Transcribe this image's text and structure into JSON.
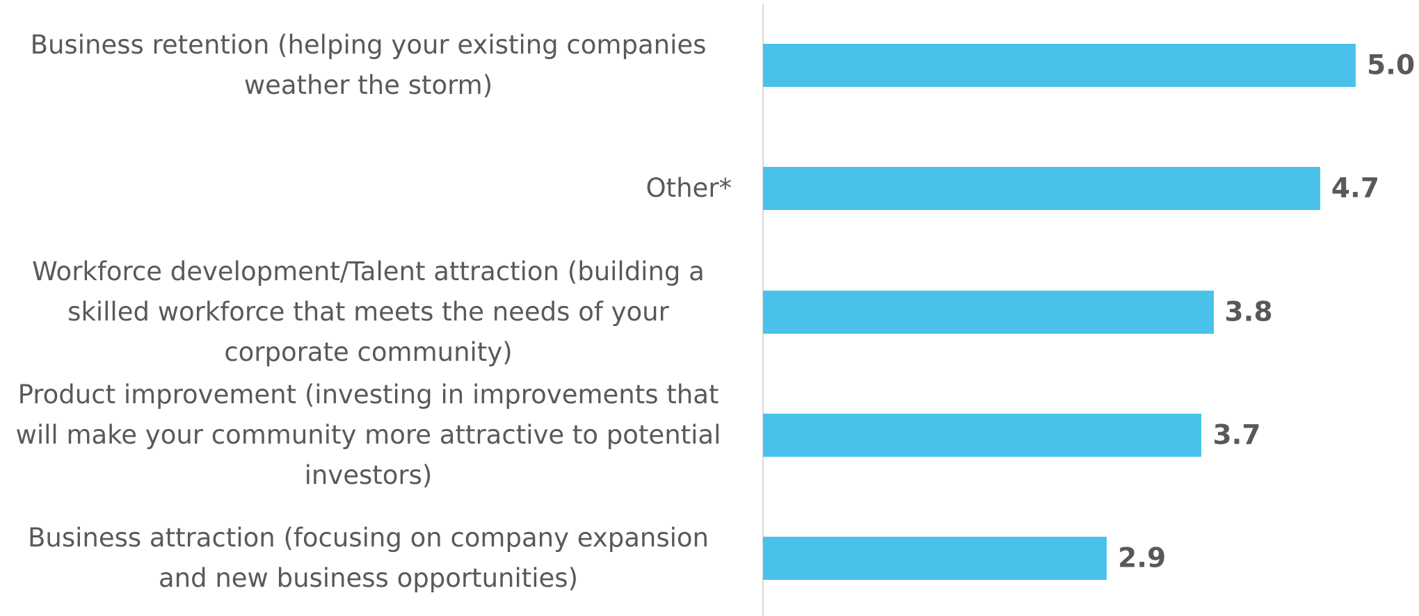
{
  "chart_data": {
    "type": "bar",
    "orientation": "horizontal",
    "categories": [
      "Business retention (helping your existing companies weather the storm)",
      "Other*",
      "Workforce development/Talent attraction (building a skilled workforce that meets the needs of your corporate community)",
      "Product improvement (investing in improvements that will make your community more attractive to potential investors)",
      "Business attraction (focusing on company expansion and new business opportunities)"
    ],
    "values": [
      5.0,
      4.7,
      3.8,
      3.7,
      2.9
    ],
    "value_labels": [
      "5.0",
      "4.7",
      "3.8",
      "3.7",
      "2.9"
    ],
    "color": "#4ac1ea",
    "xlim": [
      0,
      5
    ]
  }
}
